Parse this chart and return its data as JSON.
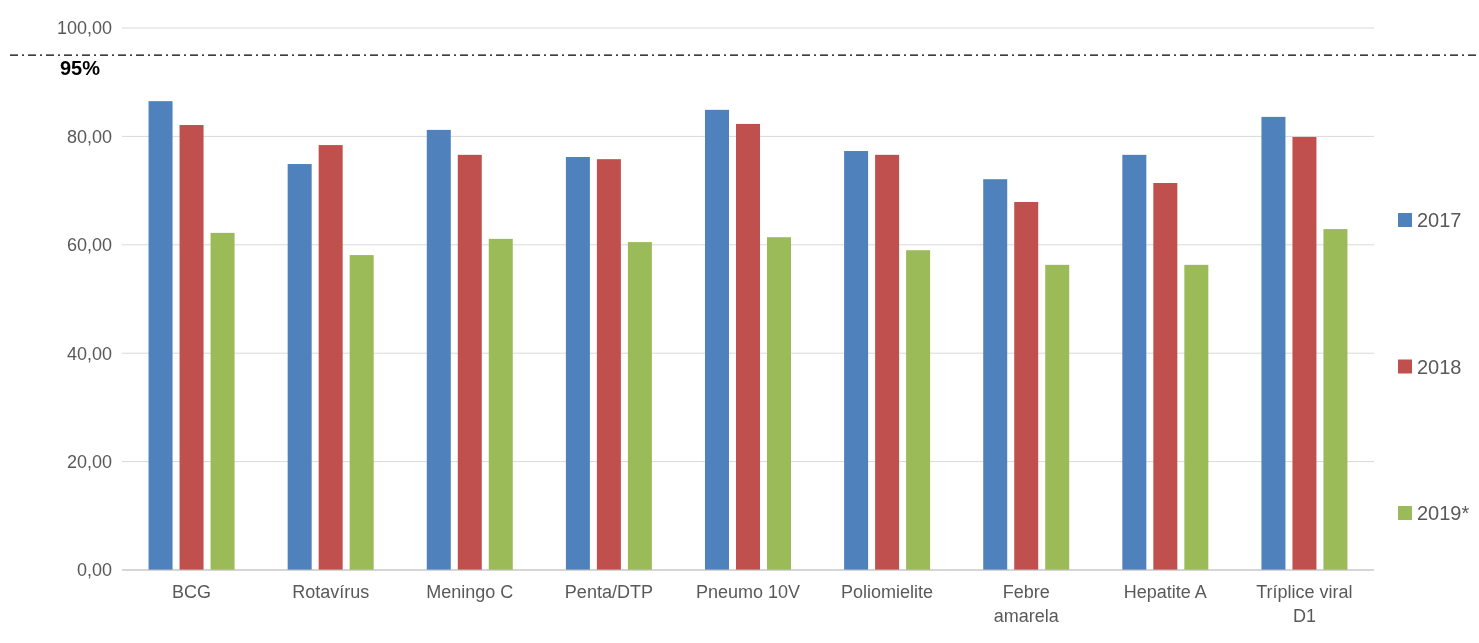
{
  "chart_data": {
    "type": "bar",
    "categories": [
      "BCG",
      "Rotavírus",
      "Meningo C",
      "Penta/DTP",
      "Pneumo 10V",
      "Poliomielite",
      "Febre amarela",
      "Hepatite A",
      "Tríplice viral D1"
    ],
    "series": [
      {
        "name": "2017",
        "color": "#4f81bd",
        "values": [
          86.5,
          74.9,
          81.2,
          76.2,
          84.9,
          77.3,
          72.1,
          76.6,
          83.6
        ]
      },
      {
        "name": "2018",
        "color": "#c0504d",
        "values": [
          82.1,
          78.4,
          76.6,
          75.8,
          82.3,
          76.6,
          67.9,
          71.4,
          79.9
        ]
      },
      {
        "name": "2019*",
        "color": "#9bbb59",
        "values": [
          62.2,
          58.1,
          61.1,
          60.5,
          61.4,
          59.0,
          56.3,
          56.3,
          62.9
        ]
      }
    ],
    "ylim": [
      0,
      100
    ],
    "yticks": [
      {
        "value": 0,
        "label": "0,00"
      },
      {
        "value": 20,
        "label": "20,00"
      },
      {
        "value": 40,
        "label": "40,00"
      },
      {
        "value": 60,
        "label": "60,00"
      },
      {
        "value": 80,
        "label": "80,00"
      },
      {
        "value": 100,
        "label": "100,00"
      }
    ],
    "ref_lines": [
      {
        "axis": "y",
        "value": 95,
        "label": "95%",
        "color": "#000000",
        "line_style": "dashdot"
      }
    ],
    "grid": "y",
    "legend": "right"
  }
}
